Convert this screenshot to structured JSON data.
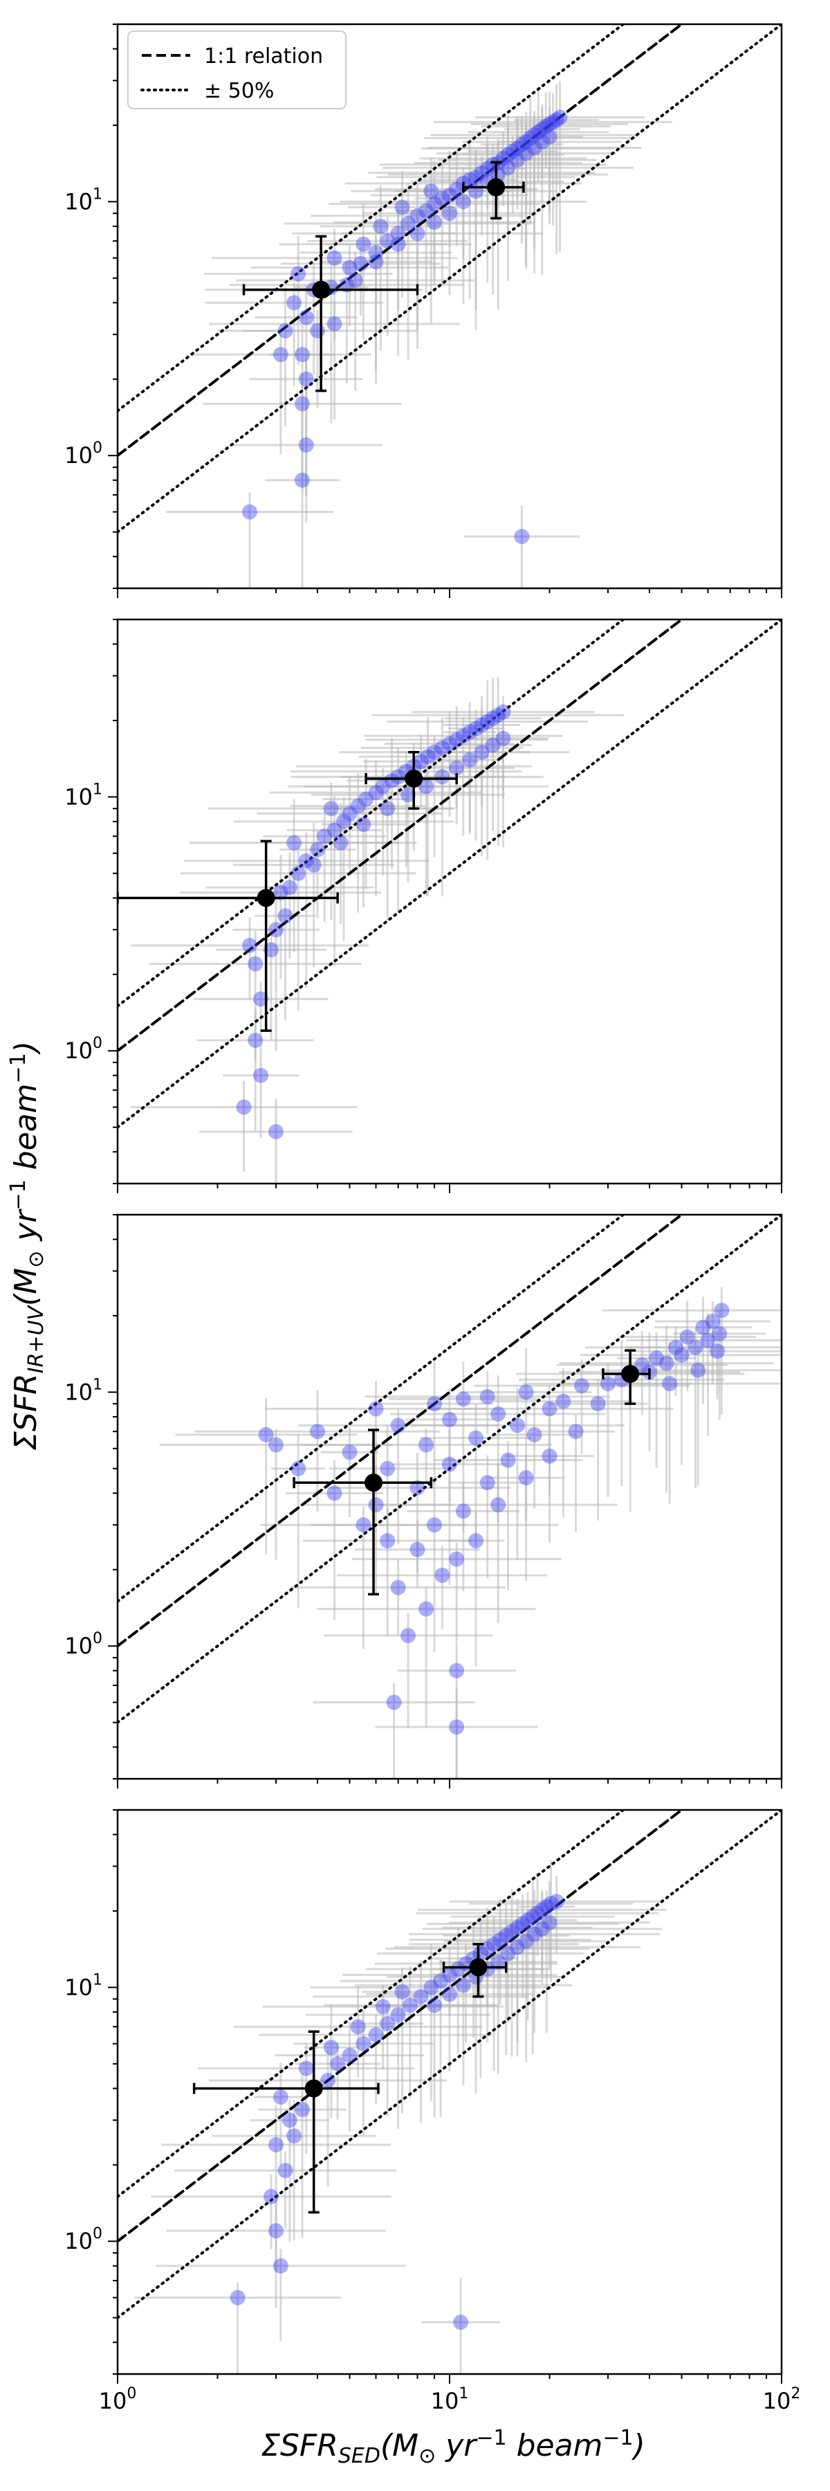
{
  "colors": {
    "points": "#3a3ff5",
    "errorbars": "#b8b8b8",
    "reference": "#000000"
  },
  "legend": {
    "placement": "top-left (first panel)",
    "entries": [
      {
        "label": "1:1 relation",
        "style": "dashed"
      },
      {
        "label": "± 50%",
        "style": "dotted"
      }
    ]
  },
  "axes": {
    "xlabel_base": "ΣSFR",
    "xlabel_sub": "SED",
    "xlabel_units": "(M",
    "xlabel_units2": " yr",
    "xlabel_units3": " beam",
    "ylabel_base": "ΣSFR",
    "ylabel_sub": "IR+UV",
    "odot": "⊙",
    "minus_one": "−1",
    "close_paren": ")",
    "x_ticks": [
      {
        "v": 1,
        "label": "10",
        "exp": "0"
      },
      {
        "v": 10,
        "label": "10",
        "exp": "1"
      },
      {
        "v": 100,
        "label": "10",
        "exp": "2"
      }
    ],
    "y_ticks": [
      {
        "v": 1,
        "label": "10",
        "exp": "0"
      },
      {
        "v": 10,
        "label": "10",
        "exp": "1"
      }
    ]
  },
  "chart_data": [
    {
      "type": "scatter",
      "xscale": "log",
      "yscale": "log",
      "xlim": [
        1,
        100
      ],
      "ylim": [
        0.3,
        50
      ],
      "grid": false,
      "reference_lines": [
        "y = x",
        "y = 1.5x",
        "y = 0.5x"
      ],
      "points": [
        [
          2.5,
          0.6
        ],
        [
          16.5,
          0.48
        ],
        [
          3.6,
          0.8
        ],
        [
          3.7,
          1.1
        ],
        [
          3.6,
          1.6
        ],
        [
          3.7,
          2.0
        ],
        [
          3.1,
          2.5
        ],
        [
          3.6,
          2.5
        ],
        [
          3.2,
          3.1
        ],
        [
          3.7,
          3.5
        ],
        [
          4.0,
          3.1
        ],
        [
          4.5,
          3.3
        ],
        [
          3.4,
          4.0
        ],
        [
          3.9,
          4.5
        ],
        [
          4.4,
          4.6
        ],
        [
          4.9,
          4.7
        ],
        [
          3.5,
          5.2
        ],
        [
          5.0,
          5.5
        ],
        [
          5.4,
          5.7
        ],
        [
          6.0,
          6.3
        ],
        [
          4.5,
          6.0
        ],
        [
          5.5,
          6.8
        ],
        [
          6.5,
          7.0
        ],
        [
          7.0,
          7.5
        ],
        [
          6.2,
          8.0
        ],
        [
          7.5,
          8.2
        ],
        [
          8.0,
          8.8
        ],
        [
          8.5,
          9.2
        ],
        [
          7.2,
          9.5
        ],
        [
          9.0,
          9.8
        ],
        [
          9.5,
          10.3
        ],
        [
          10.0,
          10.6
        ],
        [
          8.8,
          11.0
        ],
        [
          10.5,
          11.2
        ],
        [
          11.0,
          11.8
        ],
        [
          11.5,
          12.2
        ],
        [
          12.0,
          12.5
        ],
        [
          12.5,
          13.0
        ],
        [
          13.0,
          13.5
        ],
        [
          13.5,
          14.0
        ],
        [
          14.0,
          14.2
        ],
        [
          14.5,
          14.8
        ],
        [
          15.0,
          15.3
        ],
        [
          15.5,
          15.8
        ],
        [
          16.0,
          16.2
        ],
        [
          16.5,
          16.8
        ],
        [
          17.0,
          17.2
        ],
        [
          17.5,
          17.8
        ],
        [
          18.0,
          18.3
        ],
        [
          18.5,
          18.8
        ],
        [
          19.0,
          19.3
        ],
        [
          19.5,
          19.8
        ],
        [
          20.0,
          20.2
        ],
        [
          20.5,
          20.6
        ],
        [
          21.0,
          21.0
        ],
        [
          21.5,
          21.5
        ],
        [
          12.0,
          11.0
        ],
        [
          13.0,
          12.0
        ],
        [
          14.0,
          12.8
        ],
        [
          15.0,
          13.6
        ],
        [
          16.0,
          14.6
        ],
        [
          17.0,
          15.5
        ],
        [
          18.0,
          16.3
        ],
        [
          19.0,
          17.2
        ],
        [
          20.0,
          18.0
        ],
        [
          8.0,
          7.5
        ],
        [
          9.0,
          8.3
        ],
        [
          10.0,
          9.0
        ],
        [
          11.0,
          10.0
        ],
        [
          7.0,
          6.8
        ],
        [
          6.0,
          5.8
        ],
        [
          5.2,
          4.9
        ]
      ],
      "highlighted": [
        {
          "x": 4.1,
          "y": 4.5,
          "xerr": [
            2.4,
            8.0
          ],
          "yerr": [
            1.8,
            7.3
          ]
        },
        {
          "x": 13.8,
          "y": 11.4,
          "xerr": [
            11.0,
            16.7
          ],
          "yerr": [
            8.6,
            14.3
          ]
        }
      ]
    },
    {
      "type": "scatter",
      "xscale": "log",
      "yscale": "log",
      "xlim": [
        1,
        100
      ],
      "ylim": [
        0.3,
        50
      ],
      "grid": false,
      "reference_lines": [
        "y = x",
        "y = 1.5x",
        "y = 0.5x"
      ],
      "points": [
        [
          2.4,
          0.6
        ],
        [
          3.0,
          0.48
        ],
        [
          2.7,
          0.8
        ],
        [
          2.6,
          1.1
        ],
        [
          2.7,
          1.6
        ],
        [
          2.6,
          2.2
        ],
        [
          2.5,
          2.6
        ],
        [
          2.9,
          2.5
        ],
        [
          3.0,
          3.0
        ],
        [
          3.2,
          3.4
        ],
        [
          2.8,
          4.0
        ],
        [
          3.3,
          4.4
        ],
        [
          3.5,
          5.0
        ],
        [
          3.7,
          5.6
        ],
        [
          4.0,
          6.2
        ],
        [
          3.4,
          6.6
        ],
        [
          4.2,
          7.0
        ],
        [
          4.5,
          7.4
        ],
        [
          4.8,
          8.0
        ],
        [
          5.0,
          8.6
        ],
        [
          4.4,
          9.0
        ],
        [
          5.3,
          9.2
        ],
        [
          5.6,
          9.8
        ],
        [
          6.0,
          10.4
        ],
        [
          6.3,
          11.0
        ],
        [
          6.7,
          11.6
        ],
        [
          7.0,
          12.0
        ],
        [
          7.4,
          12.6
        ],
        [
          7.8,
          13.2
        ],
        [
          8.2,
          13.8
        ],
        [
          8.6,
          14.4
        ],
        [
          9.0,
          15.0
        ],
        [
          9.5,
          15.6
        ],
        [
          10.0,
          16.2
        ],
        [
          10.5,
          16.8
        ],
        [
          11.0,
          17.4
        ],
        [
          11.5,
          18.0
        ],
        [
          12.0,
          18.6
        ],
        [
          12.5,
          19.2
        ],
        [
          13.0,
          19.8
        ],
        [
          13.5,
          20.4
        ],
        [
          14.0,
          21.0
        ],
        [
          14.5,
          21.6
        ],
        [
          6.5,
          9.0
        ],
        [
          7.5,
          10.2
        ],
        [
          8.5,
          11.0
        ],
        [
          9.5,
          12.0
        ],
        [
          10.5,
          13.0
        ],
        [
          11.5,
          14.0
        ],
        [
          12.5,
          15.0
        ],
        [
          13.5,
          16.0
        ],
        [
          14.5,
          17.0
        ],
        [
          5.5,
          7.8
        ],
        [
          4.7,
          6.6
        ],
        [
          3.9,
          5.4
        ],
        [
          3.1,
          4.2
        ]
      ],
      "highlighted": [
        {
          "x": 2.8,
          "y": 4.0,
          "xerr": [
            1.0,
            4.6
          ],
          "yerr": [
            1.2,
            6.7
          ]
        },
        {
          "x": 7.8,
          "y": 11.8,
          "xerr": [
            5.6,
            10.5
          ],
          "yerr": [
            9.0,
            15.0
          ]
        }
      ]
    },
    {
      "type": "scatter",
      "xscale": "log",
      "yscale": "log",
      "xlim": [
        1,
        100
      ],
      "ylim": [
        0.3,
        50
      ],
      "grid": false,
      "reference_lines": [
        "y = x",
        "y = 1.5x",
        "y = 0.5x"
      ],
      "points": [
        [
          10.5,
          0.48
        ],
        [
          10.5,
          0.8
        ],
        [
          6.8,
          0.6
        ],
        [
          7.5,
          1.1
        ],
        [
          8.5,
          1.4
        ],
        [
          9.5,
          1.9
        ],
        [
          7.0,
          1.7
        ],
        [
          8.0,
          2.4
        ],
        [
          10.5,
          2.2
        ],
        [
          6.5,
          2.6
        ],
        [
          12.0,
          2.6
        ],
        [
          5.5,
          3.0
        ],
        [
          9.0,
          3.0
        ],
        [
          11.0,
          3.4
        ],
        [
          14.0,
          3.6
        ],
        [
          6.0,
          3.6
        ],
        [
          4.5,
          4.0
        ],
        [
          8.0,
          4.2
        ],
        [
          13.0,
          4.4
        ],
        [
          17.0,
          4.6
        ],
        [
          3.5,
          5.0
        ],
        [
          6.5,
          5.0
        ],
        [
          10.0,
          5.2
        ],
        [
          15.0,
          5.4
        ],
        [
          20.0,
          5.6
        ],
        [
          3.0,
          6.2
        ],
        [
          5.0,
          5.8
        ],
        [
          8.5,
          6.2
        ],
        [
          12.0,
          6.6
        ],
        [
          18.0,
          6.8
        ],
        [
          24.0,
          7.0
        ],
        [
          2.8,
          6.8
        ],
        [
          4.0,
          7.0
        ],
        [
          7.0,
          7.4
        ],
        [
          10.0,
          7.8
        ],
        [
          14.0,
          8.2
        ],
        [
          20.0,
          8.6
        ],
        [
          28.0,
          9.0
        ],
        [
          6.0,
          8.6
        ],
        [
          9.0,
          9.0
        ],
        [
          13.0,
          9.6
        ],
        [
          17.0,
          10.0
        ],
        [
          25.0,
          10.6
        ],
        [
          33.0,
          11.2
        ],
        [
          40.0,
          12.0
        ],
        [
          45.0,
          13.0
        ],
        [
          50.0,
          14.0
        ],
        [
          55.0,
          15.0
        ],
        [
          60.0,
          16.0
        ],
        [
          65.0,
          17.0
        ],
        [
          62.0,
          19.0
        ],
        [
          58.0,
          18.0
        ],
        [
          52.0,
          16.5
        ],
        [
          48.0,
          15.0
        ],
        [
          42.0,
          13.6
        ],
        [
          38.0,
          12.8
        ],
        [
          35.0,
          11.8
        ],
        [
          30.0,
          10.8
        ],
        [
          66.0,
          21.0
        ],
        [
          64.0,
          14.5
        ],
        [
          56.0,
          12.2
        ],
        [
          46.0,
          10.8
        ],
        [
          22.0,
          9.2
        ],
        [
          16.0,
          7.4
        ],
        [
          11.0,
          9.4
        ]
      ],
      "highlighted": [
        {
          "x": 5.9,
          "y": 4.4,
          "xerr": [
            3.4,
            8.8
          ],
          "yerr": [
            1.6,
            7.1
          ]
        },
        {
          "x": 35.0,
          "y": 11.8,
          "xerr": [
            29.0,
            40.0
          ],
          "yerr": [
            9.0,
            14.6
          ]
        }
      ]
    },
    {
      "type": "scatter",
      "xscale": "log",
      "yscale": "log",
      "xlim": [
        1,
        100
      ],
      "ylim": [
        0.3,
        50
      ],
      "grid": false,
      "reference_lines": [
        "y = x",
        "y = 1.5x",
        "y = 0.5x"
      ],
      "points": [
        [
          2.3,
          0.6
        ],
        [
          10.8,
          0.48
        ],
        [
          3.1,
          0.8
        ],
        [
          3.0,
          1.1
        ],
        [
          2.9,
          1.5
        ],
        [
          3.2,
          1.9
        ],
        [
          3.0,
          2.4
        ],
        [
          3.4,
          2.6
        ],
        [
          3.3,
          3.0
        ],
        [
          3.6,
          3.3
        ],
        [
          3.1,
          3.7
        ],
        [
          3.9,
          4.0
        ],
        [
          4.3,
          4.3
        ],
        [
          3.7,
          4.8
        ],
        [
          4.6,
          5.0
        ],
        [
          5.0,
          5.4
        ],
        [
          4.4,
          5.8
        ],
        [
          5.5,
          6.0
        ],
        [
          6.0,
          6.5
        ],
        [
          5.3,
          7.0
        ],
        [
          6.5,
          7.2
        ],
        [
          7.0,
          7.8
        ],
        [
          6.3,
          8.4
        ],
        [
          7.6,
          8.5
        ],
        [
          8.2,
          9.2
        ],
        [
          7.2,
          9.6
        ],
        [
          8.8,
          10.0
        ],
        [
          9.4,
          10.6
        ],
        [
          10.0,
          11.2
        ],
        [
          10.6,
          11.8
        ],
        [
          11.2,
          12.4
        ],
        [
          11.8,
          13.0
        ],
        [
          12.4,
          13.6
        ],
        [
          13.0,
          14.2
        ],
        [
          13.6,
          14.8
        ],
        [
          14.2,
          15.4
        ],
        [
          14.8,
          16.0
        ],
        [
          15.4,
          16.6
        ],
        [
          16.0,
          17.2
        ],
        [
          16.6,
          17.8
        ],
        [
          17.2,
          18.4
        ],
        [
          17.8,
          19.0
        ],
        [
          18.4,
          19.6
        ],
        [
          19.0,
          20.2
        ],
        [
          19.6,
          20.8
        ],
        [
          20.2,
          21.4
        ],
        [
          21.0,
          21.8
        ],
        [
          9.0,
          8.5
        ],
        [
          10.0,
          9.4
        ],
        [
          11.0,
          10.2
        ],
        [
          12.0,
          11.0
        ],
        [
          13.0,
          11.8
        ],
        [
          14.0,
          12.6
        ],
        [
          15.0,
          13.6
        ],
        [
          16.0,
          14.4
        ],
        [
          17.0,
          15.2
        ],
        [
          18.0,
          16.2
        ],
        [
          19.0,
          17.0
        ],
        [
          20.0,
          18.0
        ]
      ],
      "highlighted": [
        {
          "x": 3.9,
          "y": 4.0,
          "xerr": [
            1.7,
            6.1
          ],
          "yerr": [
            1.3,
            6.7
          ]
        },
        {
          "x": 12.2,
          "y": 12.0,
          "xerr": [
            9.6,
            14.8
          ],
          "yerr": [
            9.2,
            14.8
          ]
        }
      ]
    }
  ]
}
